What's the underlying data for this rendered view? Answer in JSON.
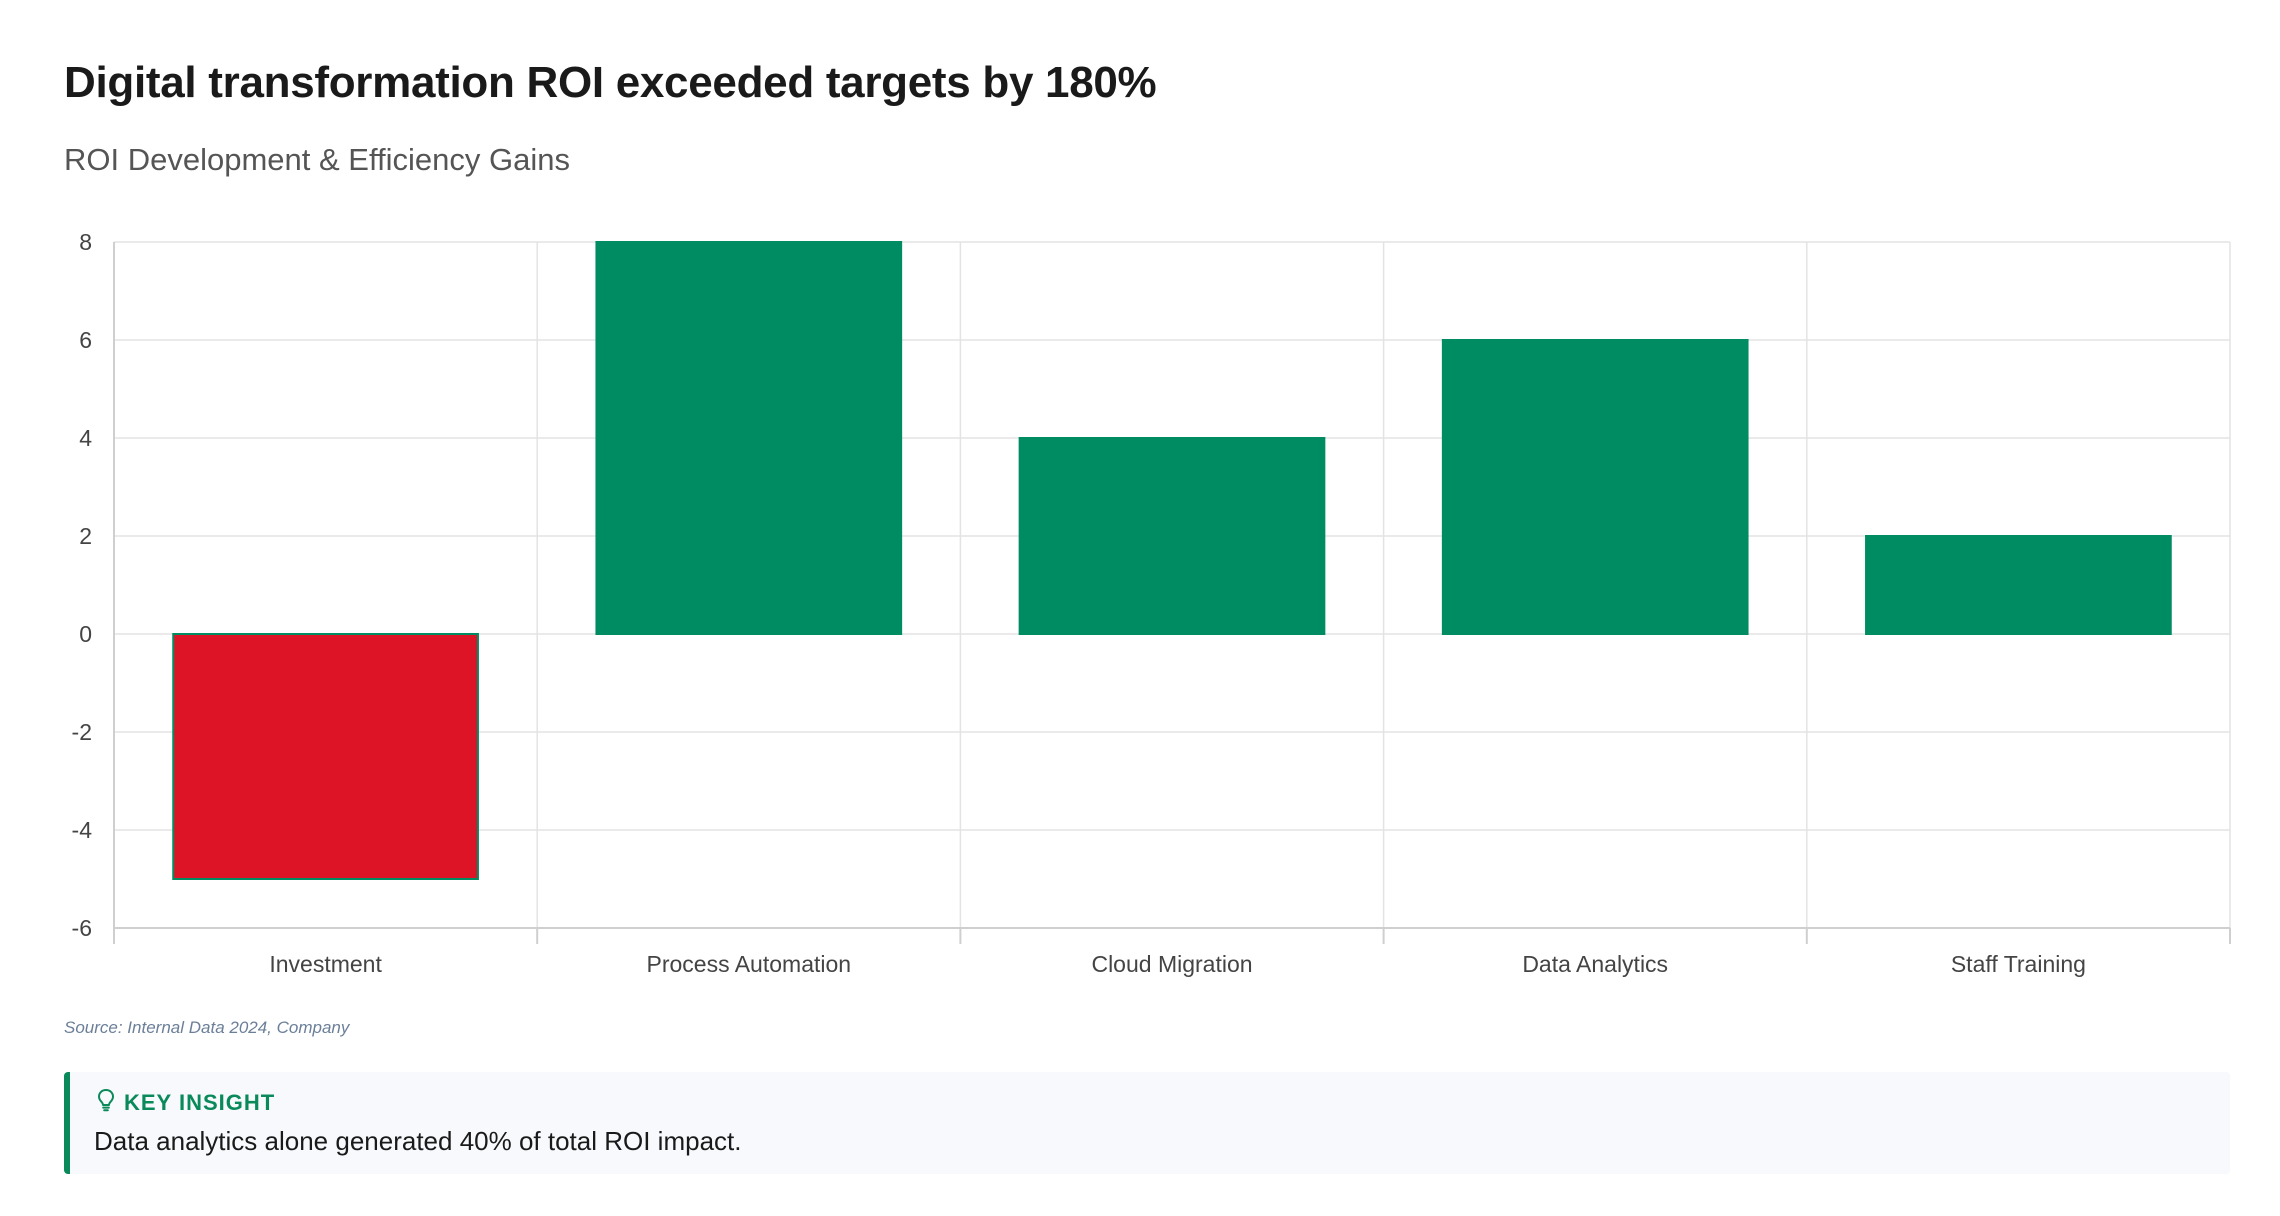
{
  "header": {
    "title": "Digital transformation ROI exceeded targets by 180%",
    "subtitle": "ROI Development & Efficiency Gains"
  },
  "chart_data": {
    "type": "bar",
    "categories": [
      "Investment",
      "Process Automation",
      "Cloud Migration",
      "Data Analytics",
      "Staff Training"
    ],
    "values": [
      -5,
      8,
      4,
      6,
      2
    ],
    "title": "",
    "xlabel": "",
    "ylabel": "",
    "ylim": [
      -6,
      8
    ],
    "yticks": [
      -6,
      -4,
      -2,
      0,
      2,
      4,
      6,
      8
    ],
    "grid": true,
    "legend": "none",
    "colors": {
      "positive": "#008c62",
      "negative": "#dc1426",
      "bar_border": "#008c62"
    }
  },
  "footer": {
    "source": "Source: Internal Data 2024, Company"
  },
  "insight": {
    "heading": "KEY INSIGHT",
    "icon": "lightbulb-icon",
    "text": "Data analytics alone generated 40% of total ROI impact."
  }
}
